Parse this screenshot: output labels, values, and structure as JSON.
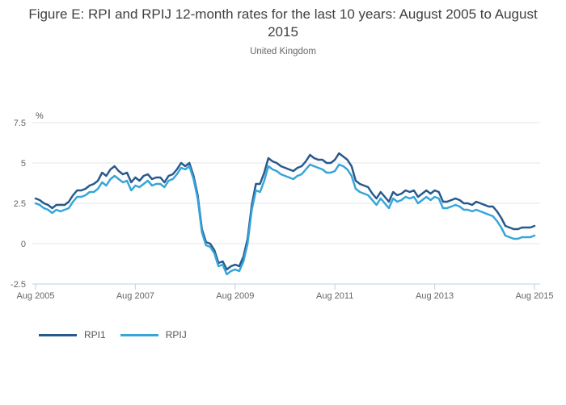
{
  "chart_data": {
    "type": "line",
    "title": "Figure E: RPI and RPIJ 12-month rates for the last 10 years: August 2005 to August 2015",
    "subtitle": "United Kingdom",
    "frequency": "monthly",
    "x_range": [
      "Aug 2005",
      "Aug 2015"
    ],
    "x_axis": {
      "ticks": [
        {
          "label": "Aug 2005",
          "month_index": 0
        },
        {
          "label": "Aug 2007",
          "month_index": 24
        },
        {
          "label": "Aug 2009",
          "month_index": 48
        },
        {
          "label": "Aug 2011",
          "month_index": 72
        },
        {
          "label": "Aug 2013",
          "month_index": 96
        },
        {
          "label": "Aug 2015",
          "month_index": 120
        }
      ]
    },
    "y_axis": {
      "label": "%",
      "range": [
        -2.5,
        7.5
      ],
      "ticks": [
        {
          "value": 7.5,
          "label": "7.5"
        },
        {
          "value": 5,
          "label": "5"
        },
        {
          "value": 2.5,
          "label": "2.5"
        },
        {
          "value": 0,
          "label": "0"
        },
        {
          "value": -2.5,
          "label": "-2.5"
        }
      ]
    },
    "grid": true,
    "legend_position": "bottom-left",
    "series": [
      {
        "name": "RPI1",
        "color": "#27598c",
        "values": [
          2.8,
          2.7,
          2.5,
          2.4,
          2.2,
          2.4,
          2.4,
          2.4,
          2.6,
          3.0,
          3.3,
          3.3,
          3.4,
          3.6,
          3.7,
          3.9,
          4.4,
          4.2,
          4.6,
          4.8,
          4.5,
          4.3,
          4.4,
          3.8,
          4.1,
          3.9,
          4.2,
          4.3,
          4.0,
          4.1,
          4.1,
          3.8,
          4.2,
          4.3,
          4.6,
          5.0,
          4.8,
          5.0,
          4.2,
          3.0,
          0.9,
          0.1,
          0.0,
          -0.4,
          -1.2,
          -1.1,
          -1.6,
          -1.4,
          -1.3,
          -1.4,
          -0.8,
          0.3,
          2.4,
          3.7,
          3.7,
          4.4,
          5.3,
          5.1,
          5.0,
          4.8,
          4.7,
          4.6,
          4.5,
          4.7,
          4.8,
          5.1,
          5.5,
          5.3,
          5.2,
          5.2,
          5.0,
          5.0,
          5.2,
          5.6,
          5.4,
          5.2,
          4.8,
          3.9,
          3.7,
          3.6,
          3.5,
          3.1,
          2.8,
          3.2,
          2.9,
          2.6,
          3.2,
          3.0,
          3.1,
          3.3,
          3.2,
          3.3,
          2.9,
          3.1,
          3.3,
          3.1,
          3.3,
          3.2,
          2.6,
          2.6,
          2.7,
          2.8,
          2.7,
          2.5,
          2.5,
          2.4,
          2.6,
          2.5,
          2.4,
          2.3,
          2.3,
          2.0,
          1.6,
          1.1,
          1.0,
          0.9,
          0.9,
          1.0,
          1.0,
          1.0,
          1.1
        ]
      },
      {
        "name": "RPIJ",
        "color": "#36a5d8",
        "values": [
          2.5,
          2.4,
          2.2,
          2.1,
          1.9,
          2.1,
          2.0,
          2.1,
          2.2,
          2.6,
          2.9,
          2.9,
          3.0,
          3.2,
          3.2,
          3.4,
          3.8,
          3.6,
          4.0,
          4.2,
          4.0,
          3.8,
          3.9,
          3.3,
          3.6,
          3.5,
          3.7,
          3.9,
          3.6,
          3.7,
          3.7,
          3.5,
          3.9,
          4.0,
          4.3,
          4.7,
          4.6,
          4.8,
          4.0,
          2.8,
          0.7,
          -0.1,
          -0.2,
          -0.6,
          -1.4,
          -1.3,
          -1.9,
          -1.7,
          -1.6,
          -1.7,
          -1.1,
          0.0,
          2.1,
          3.3,
          3.2,
          3.9,
          4.8,
          4.6,
          4.5,
          4.3,
          4.2,
          4.1,
          4.0,
          4.2,
          4.3,
          4.6,
          4.9,
          4.8,
          4.7,
          4.6,
          4.4,
          4.4,
          4.5,
          4.9,
          4.8,
          4.6,
          4.2,
          3.4,
          3.2,
          3.1,
          3.0,
          2.7,
          2.4,
          2.8,
          2.5,
          2.2,
          2.8,
          2.6,
          2.7,
          2.9,
          2.8,
          2.9,
          2.5,
          2.7,
          2.9,
          2.7,
          2.9,
          2.8,
          2.2,
          2.2,
          2.3,
          2.4,
          2.3,
          2.1,
          2.1,
          2.0,
          2.1,
          2.0,
          1.9,
          1.8,
          1.7,
          1.4,
          1.0,
          0.5,
          0.4,
          0.3,
          0.3,
          0.4,
          0.4,
          0.4,
          0.5
        ]
      }
    ]
  },
  "colors": {
    "grid": "#e5e5e5",
    "axis": "#ccd6e4",
    "tick_text": "#666666",
    "unit_text": "#555555",
    "title_text": "#404040",
    "subtitle_text": "#666666"
  }
}
